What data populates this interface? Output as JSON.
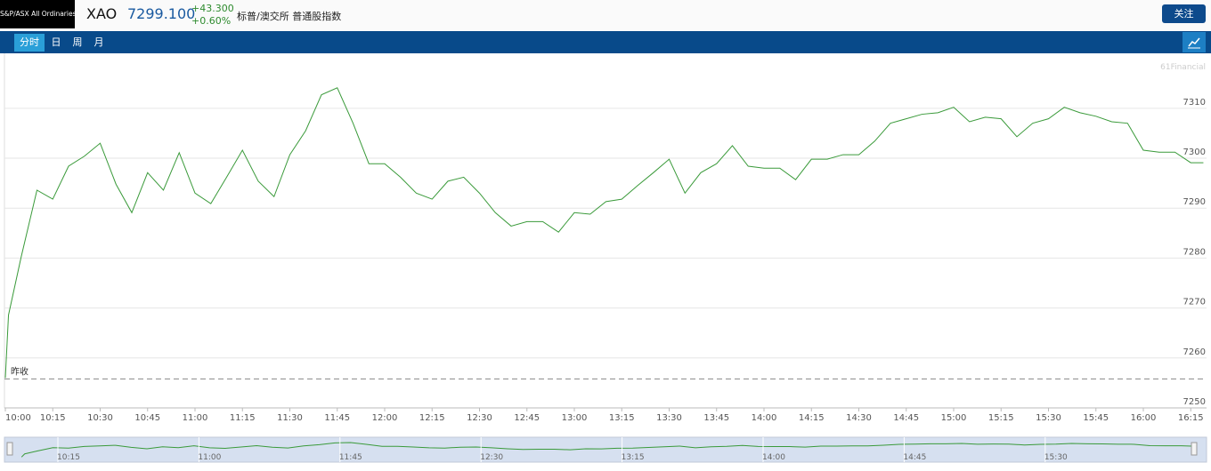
{
  "header": {
    "index_name": "S&P/ASX All Ordinaries",
    "symbol": "XAO",
    "price": "7299.100",
    "change": "+43.300",
    "change_pct": "+0.60%",
    "description": "标普/澳交所 普通股指数",
    "follow_button": "关注"
  },
  "tabs": [
    "分时",
    "日",
    "周",
    "月"
  ],
  "watermark": "61Financial",
  "chart_data": {
    "type": "line",
    "x": [
      "10:00",
      "10:01",
      "10:05",
      "10:10",
      "10:15",
      "10:20",
      "10:25",
      "10:30",
      "10:35",
      "10:40",
      "10:45",
      "10:50",
      "10:55",
      "11:00",
      "11:05",
      "11:10",
      "11:15",
      "11:20",
      "11:25",
      "11:30",
      "11:35",
      "11:40",
      "11:45",
      "11:50",
      "11:55",
      "12:00",
      "12:05",
      "12:10",
      "12:15",
      "12:20",
      "12:25",
      "12:30",
      "12:35",
      "12:40",
      "12:45",
      "12:50",
      "12:55",
      "13:00",
      "13:05",
      "13:10",
      "13:15",
      "13:20",
      "13:25",
      "13:30",
      "13:35",
      "13:40",
      "13:45",
      "13:50",
      "13:55",
      "14:00",
      "14:05",
      "14:10",
      "14:15",
      "14:20",
      "14:25",
      "14:30",
      "14:35",
      "14:40",
      "14:45",
      "14:50",
      "14:55",
      "15:00",
      "15:05",
      "15:10",
      "15:15",
      "15:20",
      "15:25",
      "15:30",
      "15:35",
      "15:40",
      "15:45",
      "15:50",
      "15:55",
      "16:00",
      "16:05",
      "16:10",
      "16:15",
      "16:19"
    ],
    "series": [
      {
        "name": "XAO",
        "color": "#3a9a3a",
        "values": [
          7256.0,
          7268.6,
          7280.2,
          7293.6,
          7291.8,
          7298.4,
          7300.4,
          7303.0,
          7294.8,
          7289.1,
          7297.1,
          7293.6,
          7301.1,
          7293.0,
          7290.9,
          7296.2,
          7301.6,
          7295.4,
          7292.3,
          7300.7,
          7305.5,
          7312.7,
          7314.1,
          7307.0,
          7298.9,
          7298.9,
          7296.2,
          7293.0,
          7291.8,
          7295.4,
          7296.2,
          7293.0,
          7289.1,
          7286.4,
          7287.3,
          7287.3,
          7285.2,
          7289.1,
          7288.8,
          7291.3,
          7291.8,
          7294.5,
          7297.1,
          7299.8,
          7293.0,
          7297.1,
          7298.9,
          7302.5,
          7298.4,
          7298.0,
          7298.0,
          7295.7,
          7299.8,
          7299.8,
          7300.7,
          7300.7,
          7303.4,
          7307.0,
          7307.9,
          7308.8,
          7309.1,
          7310.2,
          7307.3,
          7308.2,
          7307.9,
          7304.3,
          7307.0,
          7307.9,
          7310.2,
          7309.1,
          7308.4,
          7307.3,
          7307.0,
          7301.6,
          7301.2,
          7301.2,
          7299.1,
          7299.1
        ]
      }
    ],
    "xlim": [
      "10:00",
      "16:20"
    ],
    "xticks": [
      "10:00",
      "10:15",
      "10:30",
      "10:45",
      "11:00",
      "11:15",
      "11:30",
      "11:45",
      "12:00",
      "12:15",
      "12:30",
      "12:45",
      "13:00",
      "13:15",
      "13:30",
      "13:45",
      "14:00",
      "14:15",
      "14:30",
      "14:45",
      "15:00",
      "15:15",
      "15:30",
      "15:45",
      "16:00",
      "16:15"
    ],
    "ylim": [
      7250,
      7321
    ],
    "yticks": [
      7250,
      7260,
      7270,
      7280,
      7290,
      7300,
      7310
    ],
    "grid": true,
    "prev_close": 7255.8,
    "prev_close_label": "昨收"
  },
  "navigator": {
    "labels": [
      "10:15",
      "11:00",
      "11:45",
      "12:30",
      "13:15",
      "14:00",
      "14:45",
      "15:30"
    ]
  }
}
